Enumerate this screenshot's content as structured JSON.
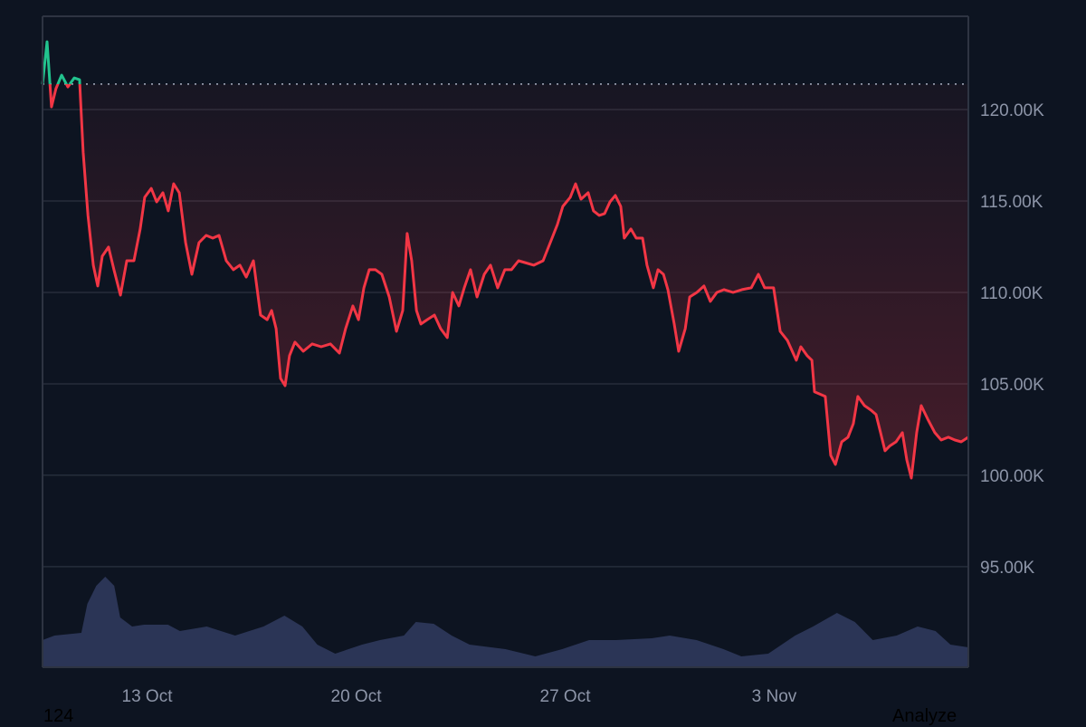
{
  "chart_data": {
    "type": "line",
    "style": "baseline",
    "title": "",
    "xlabel": "",
    "ylabel": "",
    "x_unit": "day (Oct 1 = 1; 3 Nov = 34)",
    "xlim": [
      9.5,
      40.5
    ],
    "ylim": [
      89.5,
      125.1
    ],
    "baseline": 121.39,
    "colors": {
      "above": "#22c38e",
      "below": "#f23645",
      "volume": "#2b3556",
      "grid": "#262d3b",
      "bg": "#0d1421"
    },
    "x_ticks": [
      {
        "x": 13,
        "label": "13 Oct"
      },
      {
        "x": 20,
        "label": "20 Oct"
      },
      {
        "x": 27,
        "label": "27 Oct"
      },
      {
        "x": 34,
        "label": "3 Nov"
      }
    ],
    "y_ticks": [
      {
        "y": 120,
        "label": "120.00K"
      },
      {
        "y": 115,
        "label": "115.00K"
      },
      {
        "y": 110,
        "label": "110.00K"
      },
      {
        "y": 105,
        "label": "105.00K"
      },
      {
        "y": 100,
        "label": "100.00K"
      },
      {
        "y": 95,
        "label": "95.00K"
      }
    ],
    "price": [
      [
        9.5,
        121.39
      ],
      [
        9.65,
        123.71
      ],
      [
        9.8,
        120.15
      ],
      [
        9.95,
        121.14
      ],
      [
        10.14,
        121.88
      ],
      [
        10.35,
        121.24
      ],
      [
        10.56,
        121.73
      ],
      [
        10.74,
        121.63
      ],
      [
        10.86,
        117.67
      ],
      [
        11.02,
        114.21
      ],
      [
        11.2,
        111.49
      ],
      [
        11.35,
        110.35
      ],
      [
        11.5,
        111.98
      ],
      [
        11.71,
        112.48
      ],
      [
        11.89,
        111.24
      ],
      [
        12.11,
        109.85
      ],
      [
        12.32,
        111.73
      ],
      [
        12.56,
        111.73
      ],
      [
        12.77,
        113.47
      ],
      [
        12.92,
        115.2
      ],
      [
        13.14,
        115.69
      ],
      [
        13.32,
        114.95
      ],
      [
        13.53,
        115.45
      ],
      [
        13.71,
        114.46
      ],
      [
        13.89,
        115.94
      ],
      [
        14.08,
        115.45
      ],
      [
        14.29,
        112.72
      ],
      [
        14.5,
        110.99
      ],
      [
        14.74,
        112.72
      ],
      [
        14.98,
        113.12
      ],
      [
        15.2,
        112.97
      ],
      [
        15.41,
        113.12
      ],
      [
        15.65,
        111.73
      ],
      [
        15.89,
        111.24
      ],
      [
        16.11,
        111.49
      ],
      [
        16.32,
        110.84
      ],
      [
        16.56,
        111.73
      ],
      [
        16.8,
        108.76
      ],
      [
        17.02,
        108.51
      ],
      [
        17.17,
        109.01
      ],
      [
        17.32,
        108.02
      ],
      [
        17.47,
        105.3
      ],
      [
        17.62,
        104.9
      ],
      [
        17.77,
        106.54
      ],
      [
        17.95,
        107.28
      ],
      [
        18.23,
        106.78
      ],
      [
        18.53,
        107.18
      ],
      [
        18.83,
        107.03
      ],
      [
        19.14,
        107.18
      ],
      [
        19.44,
        106.68
      ],
      [
        19.65,
        108.02
      ],
      [
        19.89,
        109.26
      ],
      [
        20.08,
        108.51
      ],
      [
        20.26,
        110.25
      ],
      [
        20.44,
        111.24
      ],
      [
        20.65,
        111.24
      ],
      [
        20.86,
        110.99
      ],
      [
        21.11,
        109.75
      ],
      [
        21.35,
        107.87
      ],
      [
        21.56,
        109.01
      ],
      [
        21.71,
        113.22
      ],
      [
        21.86,
        111.73
      ],
      [
        22.02,
        109.01
      ],
      [
        22.17,
        108.27
      ],
      [
        22.38,
        108.51
      ],
      [
        22.62,
        108.76
      ],
      [
        22.83,
        108.02
      ],
      [
        23.05,
        107.53
      ],
      [
        23.23,
        110.0
      ],
      [
        23.44,
        109.26
      ],
      [
        23.62,
        110.25
      ],
      [
        23.83,
        111.24
      ],
      [
        24.05,
        109.75
      ],
      [
        24.29,
        110.99
      ],
      [
        24.5,
        111.49
      ],
      [
        24.74,
        110.25
      ],
      [
        24.98,
        111.24
      ],
      [
        25.2,
        111.24
      ],
      [
        25.44,
        111.73
      ],
      [
        25.65,
        111.63
      ],
      [
        25.95,
        111.49
      ],
      [
        26.26,
        111.73
      ],
      [
        26.56,
        112.97
      ],
      [
        26.74,
        113.71
      ],
      [
        26.92,
        114.7
      ],
      [
        27.17,
        115.2
      ],
      [
        27.35,
        115.94
      ],
      [
        27.53,
        115.1
      ],
      [
        27.77,
        115.45
      ],
      [
        27.95,
        114.46
      ],
      [
        28.14,
        114.21
      ],
      [
        28.32,
        114.31
      ],
      [
        28.5,
        114.95
      ],
      [
        28.68,
        115.3
      ],
      [
        28.86,
        114.7
      ],
      [
        28.98,
        112.97
      ],
      [
        29.2,
        113.47
      ],
      [
        29.38,
        112.97
      ],
      [
        29.59,
        112.97
      ],
      [
        29.74,
        111.49
      ],
      [
        29.95,
        110.25
      ],
      [
        30.11,
        111.24
      ],
      [
        30.29,
        110.99
      ],
      [
        30.44,
        110.15
      ],
      [
        30.65,
        108.27
      ],
      [
        30.8,
        106.78
      ],
      [
        31.02,
        108.02
      ],
      [
        31.17,
        109.75
      ],
      [
        31.41,
        110.0
      ],
      [
        31.65,
        110.35
      ],
      [
        31.86,
        109.51
      ],
      [
        32.08,
        110.0
      ],
      [
        32.32,
        110.15
      ],
      [
        32.62,
        110.0
      ],
      [
        32.92,
        110.15
      ],
      [
        33.23,
        110.25
      ],
      [
        33.47,
        110.99
      ],
      [
        33.68,
        110.25
      ],
      [
        33.98,
        110.25
      ],
      [
        34.2,
        107.87
      ],
      [
        34.44,
        107.38
      ],
      [
        34.74,
        106.29
      ],
      [
        34.89,
        107.03
      ],
      [
        35.1,
        106.54
      ],
      [
        35.26,
        106.29
      ],
      [
        35.35,
        104.56
      ],
      [
        35.71,
        104.31
      ],
      [
        35.89,
        101.09
      ],
      [
        36.05,
        100.59
      ],
      [
        36.26,
        101.83
      ],
      [
        36.47,
        102.08
      ],
      [
        36.65,
        102.82
      ],
      [
        36.8,
        104.31
      ],
      [
        37.02,
        103.81
      ],
      [
        37.23,
        103.57
      ],
      [
        37.41,
        103.32
      ],
      [
        37.56,
        102.33
      ],
      [
        37.71,
        101.34
      ],
      [
        37.86,
        101.59
      ],
      [
        38.08,
        101.83
      ],
      [
        38.29,
        102.33
      ],
      [
        38.44,
        100.84
      ],
      [
        38.59,
        99.85
      ],
      [
        38.77,
        102.33
      ],
      [
        38.92,
        103.81
      ],
      [
        39.14,
        103.07
      ],
      [
        39.38,
        102.33
      ],
      [
        39.59,
        101.93
      ],
      [
        39.83,
        102.08
      ],
      [
        40.05,
        101.93
      ],
      [
        40.26,
        101.83
      ],
      [
        40.5,
        102.08
      ]
    ],
    "volume_max": 110,
    "volume": [
      [
        9.5,
        30
      ],
      [
        9.9,
        35
      ],
      [
        10.8,
        38
      ],
      [
        11.0,
        70
      ],
      [
        11.3,
        90
      ],
      [
        11.6,
        100
      ],
      [
        11.9,
        90
      ],
      [
        12.1,
        55
      ],
      [
        12.5,
        45
      ],
      [
        12.9,
        47
      ],
      [
        13.7,
        47
      ],
      [
        14.1,
        40
      ],
      [
        15.0,
        45
      ],
      [
        15.95,
        35
      ],
      [
        16.9,
        45
      ],
      [
        17.6,
        57
      ],
      [
        18.2,
        45
      ],
      [
        18.7,
        25
      ],
      [
        19.3,
        15
      ],
      [
        20.2,
        25
      ],
      [
        20.8,
        30
      ],
      [
        21.6,
        35
      ],
      [
        22.0,
        50
      ],
      [
        22.6,
        48
      ],
      [
        23.2,
        35
      ],
      [
        23.8,
        25
      ],
      [
        25.0,
        20
      ],
      [
        26.0,
        12
      ],
      [
        26.9,
        20
      ],
      [
        27.8,
        30
      ],
      [
        28.7,
        30
      ],
      [
        29.9,
        32
      ],
      [
        30.5,
        35
      ],
      [
        31.4,
        30
      ],
      [
        32.3,
        20
      ],
      [
        32.9,
        12
      ],
      [
        33.8,
        15
      ],
      [
        34.7,
        35
      ],
      [
        35.3,
        45
      ],
      [
        36.1,
        60
      ],
      [
        36.7,
        50
      ],
      [
        37.3,
        30
      ],
      [
        38.1,
        35
      ],
      [
        38.8,
        45
      ],
      [
        39.4,
        40
      ],
      [
        39.9,
        25
      ],
      [
        40.5,
        22
      ]
    ]
  },
  "footer": {
    "left": "124",
    "right": "Analyze"
  }
}
